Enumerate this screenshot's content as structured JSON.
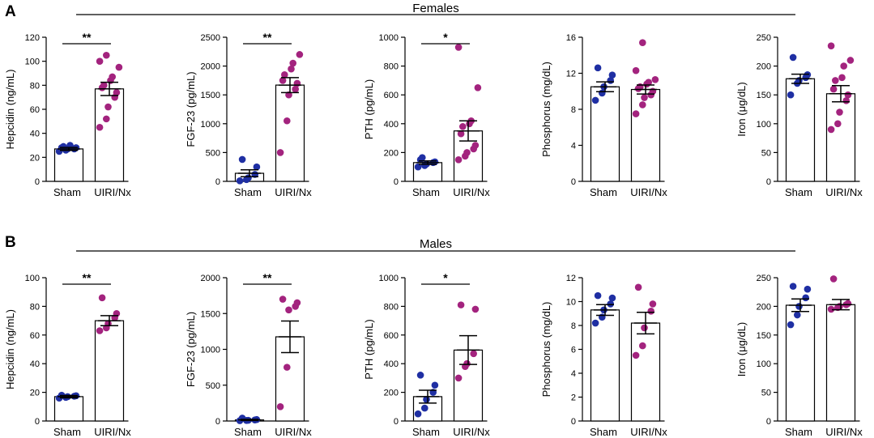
{
  "panels": [
    {
      "letter": "A",
      "group_title": "Females",
      "charts": [
        {
          "chart_data": {
            "type": "bar",
            "ylabel": "Hepcidin (ng/mL)",
            "ylim": [
              0,
              120
            ],
            "yticks": [
              0,
              20,
              40,
              60,
              80,
              100,
              120
            ],
            "categories": [
              "Sham",
              "UIRI/Nx"
            ],
            "colors": [
              "#1f2fa3",
              "#a3237e"
            ],
            "means": [
              27,
              77
            ],
            "sem": [
              1.2,
              5.5
            ],
            "points": [
              [
                25,
                26,
                27,
                27,
                28,
                28,
                29,
                30
              ],
              [
                45,
                52,
                62,
                70,
                74,
                78,
                80,
                84,
                87,
                95,
                100,
                105
              ]
            ],
            "significance": "**"
          }
        },
        {
          "chart_data": {
            "type": "bar",
            "ylabel": "FGF-23 (pg/mL)",
            "ylim": [
              0,
              2500
            ],
            "yticks": [
              0,
              500,
              1000,
              1500,
              2000,
              2500
            ],
            "categories": [
              "Sham",
              "UIRI/Nx"
            ],
            "colors": [
              "#1f2fa3",
              "#a3237e"
            ],
            "means": [
              140,
              1670
            ],
            "sem": [
              60,
              130
            ],
            "points": [
              [
                10,
                30,
                60,
                120,
                250,
                380
              ],
              [
                500,
                1050,
                1500,
                1600,
                1700,
                1750,
                1850,
                1950,
                2050,
                2200
              ]
            ],
            "significance": "**"
          }
        },
        {
          "chart_data": {
            "type": "bar",
            "ylabel": "PTH (pg/mL)",
            "ylim": [
              0,
              1000
            ],
            "yticks": [
              0,
              200,
              400,
              600,
              800,
              1000
            ],
            "categories": [
              "Sham",
              "UIRI/Nx"
            ],
            "colors": [
              "#1f2fa3",
              "#a3237e"
            ],
            "means": [
              130,
              350
            ],
            "sem": [
              12,
              70
            ],
            "points": [
              [
                100,
                110,
                120,
                130,
                135,
                150,
                165
              ],
              [
                150,
                175,
                200,
                225,
                250,
                330,
                380,
                400,
                420,
                650,
                930
              ]
            ],
            "significance": "*"
          }
        },
        {
          "chart_data": {
            "type": "bar",
            "ylabel": "Phosphorus (mg/dL)",
            "ylim": [
              0,
              16
            ],
            "yticks": [
              0,
              4,
              8,
              12,
              16
            ],
            "categories": [
              "Sham",
              "UIRI/Nx"
            ],
            "colors": [
              "#1f2fa3",
              "#a3237e"
            ],
            "means": [
              10.5,
              10.2
            ],
            "sem": [
              0.55,
              0.5
            ],
            "points": [
              [
                9.0,
                9.8,
                10.5,
                11.2,
                11.8,
                12.6
              ],
              [
                7.5,
                8.5,
                9.3,
                9.6,
                10.0,
                10.3,
                10.5,
                10.8,
                11.0,
                11.3,
                12.3,
                15.4
              ]
            ],
            "significance": ""
          }
        },
        {
          "chart_data": {
            "type": "bar",
            "ylabel": "Iron (μg/dL)",
            "ylim": [
              0,
              250
            ],
            "yticks": [
              0,
              50,
              100,
              150,
              200,
              250
            ],
            "categories": [
              "Sham",
              "UIRI/Nx"
            ],
            "colors": [
              "#1f2fa3",
              "#a3237e"
            ],
            "means": [
              178,
              152
            ],
            "sem": [
              8,
              14
            ],
            "points": [
              [
                150,
                170,
                175,
                180,
                185,
                215
              ],
              [
                90,
                100,
                120,
                140,
                150,
                160,
                175,
                180,
                200,
                210,
                235
              ]
            ],
            "significance": ""
          }
        }
      ]
    },
    {
      "letter": "B",
      "group_title": "Males",
      "charts": [
        {
          "chart_data": {
            "type": "bar",
            "ylabel": "Hepcidin (ng/mL)",
            "ylim": [
              0,
              100
            ],
            "yticks": [
              0,
              20,
              40,
              60,
              80,
              100
            ],
            "categories": [
              "Sham",
              "UIRI/Nx"
            ],
            "colors": [
              "#1f2fa3",
              "#a3237e"
            ],
            "means": [
              17,
              70
            ],
            "sem": [
              0.8,
              3.5
            ],
            "points": [
              [
                16,
                16.5,
                17,
                17.3,
                17.6,
                18
              ],
              [
                63,
                65,
                68,
                72,
                75,
                86
              ]
            ],
            "significance": "**"
          }
        },
        {
          "chart_data": {
            "type": "bar",
            "ylabel": "FGF-23 (pg/mL)",
            "ylim": [
              0,
              2000
            ],
            "yticks": [
              0,
              500,
              1000,
              1500,
              2000
            ],
            "categories": [
              "Sham",
              "UIRI/Nx"
            ],
            "colors": [
              "#1f2fa3",
              "#a3237e"
            ],
            "means": [
              15,
              1175
            ],
            "sem": [
              8,
              220
            ],
            "points": [
              [
                5,
                8,
                10,
                15,
                20,
                40
              ],
              [
                200,
                750,
                1550,
                1600,
                1650,
                1700
              ]
            ],
            "significance": "**"
          }
        },
        {
          "chart_data": {
            "type": "bar",
            "ylabel": "PTH (pg/mL)",
            "ylim": [
              0,
              1000
            ],
            "yticks": [
              0,
              200,
              400,
              600,
              800,
              1000
            ],
            "categories": [
              "Sham",
              "UIRI/Nx"
            ],
            "colors": [
              "#1f2fa3",
              "#a3237e"
            ],
            "means": [
              170,
              495
            ],
            "sem": [
              45,
              100
            ],
            "points": [
              [
                50,
                90,
                150,
                200,
                250,
                320
              ],
              [
                300,
                380,
                400,
                470,
                780,
                810
              ]
            ],
            "significance": "*"
          }
        },
        {
          "chart_data": {
            "type": "bar",
            "ylabel": "Phosphorus (mg/dL)",
            "ylim": [
              0,
              12
            ],
            "yticks": [
              0,
              2,
              4,
              6,
              8,
              10,
              12
            ],
            "categories": [
              "Sham",
              "UIRI/Nx"
            ],
            "colors": [
              "#1f2fa3",
              "#a3237e"
            ],
            "means": [
              9.3,
              8.2
            ],
            "sem": [
              0.45,
              0.9
            ],
            "points": [
              [
                8.2,
                8.7,
                9.3,
                9.8,
                10.3,
                10.5
              ],
              [
                5.5,
                6.3,
                7.8,
                9.2,
                9.8,
                11.2
              ]
            ],
            "significance": ""
          }
        },
        {
          "chart_data": {
            "type": "bar",
            "ylabel": "Iron (μg/dL)",
            "ylim": [
              0,
              250
            ],
            "yticks": [
              0,
              50,
              100,
              150,
              200,
              250
            ],
            "categories": [
              "Sham",
              "UIRI/Nx"
            ],
            "colors": [
              "#1f2fa3",
              "#a3237e"
            ],
            "means": [
              202,
              203
            ],
            "sem": [
              11,
              9
            ],
            "points": [
              [
                168,
                185,
                200,
                215,
                230,
                235
              ],
              [
                195,
                198,
                200,
                203,
                205,
                248
              ]
            ],
            "significance": ""
          }
        }
      ]
    }
  ]
}
